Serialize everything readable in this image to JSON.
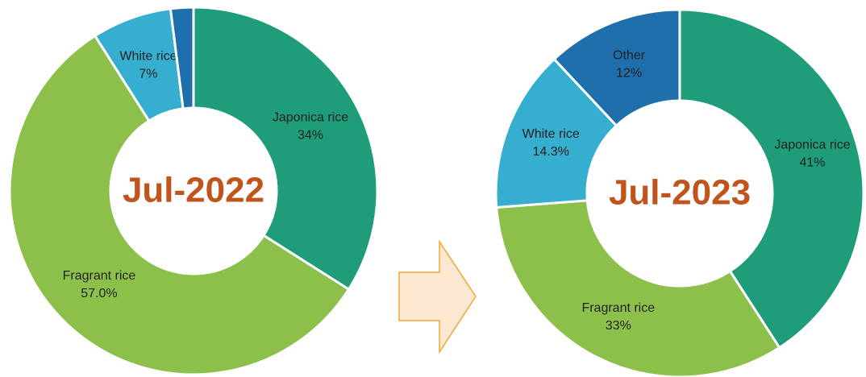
{
  "chart_data": [
    {
      "type": "donut",
      "title": "Jul-2022",
      "categories": [
        "Japonica rice",
        "Fragrant rice",
        "White rice",
        null
      ],
      "values": [
        34,
        57,
        7,
        2
      ],
      "value_labels": [
        "34%",
        "57.0%",
        "7%",
        null
      ],
      "colors": [
        "#1f9c7a",
        "#8cc04b",
        "#36aed0",
        "#1f6fad"
      ]
    },
    {
      "type": "donut",
      "title": "Jul-2023",
      "categories": [
        "Japonica rice",
        "Fragrant rice",
        "White rice",
        "Other"
      ],
      "values": [
        41,
        33,
        14.3,
        12
      ],
      "value_labels": [
        "41%",
        "33%",
        "14.3%",
        "12%"
      ],
      "colors": [
        "#1f9c7a",
        "#8cc04b",
        "#36aed0",
        "#1f6fad"
      ]
    }
  ]
}
